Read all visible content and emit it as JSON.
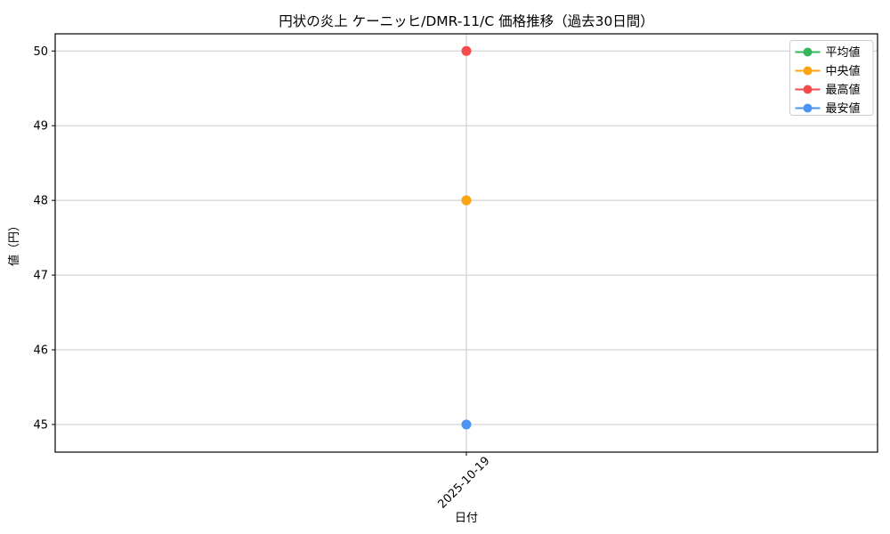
{
  "chart_data": {
    "type": "line",
    "title": "円状の炎上 ケーニッヒ/DMR-11/C 価格推移（過去30日間）",
    "xlabel": "日付",
    "ylabel": "値（円）",
    "categories": [
      "2025-10-19"
    ],
    "series": [
      {
        "name": "平均値",
        "color": "#35b85c",
        "values": [
          48
        ]
      },
      {
        "name": "中央値",
        "color": "#ffa412",
        "values": [
          48
        ]
      },
      {
        "name": "最高値",
        "color": "#f54b4b",
        "values": [
          50
        ]
      },
      {
        "name": "最安値",
        "color": "#4b94f2",
        "values": [
          45
        ]
      }
    ],
    "ylim": [
      44.63,
      50.23
    ],
    "yticks": [
      45,
      46,
      47,
      48,
      49,
      50
    ],
    "grid": true,
    "legend_position": "upper right",
    "background": "#ffffff",
    "grid_color": "#cacaca"
  }
}
